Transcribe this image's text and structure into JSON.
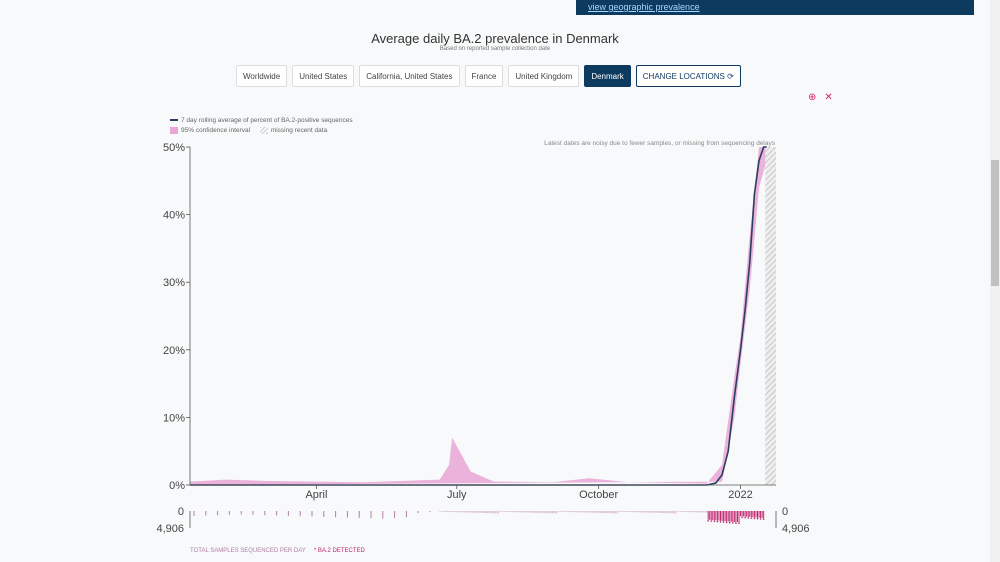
{
  "banner": {
    "link": "view geographic prevalence"
  },
  "header": {
    "title": "Average daily BA.2 prevalence in Denmark",
    "subtitle": "Based on reported sample collection date"
  },
  "locations": [
    {
      "label": "Worldwide",
      "active": false
    },
    {
      "label": "United States",
      "active": false
    },
    {
      "label": "California, United States",
      "active": false
    },
    {
      "label": "France",
      "active": false
    },
    {
      "label": "United Kingdom",
      "active": false
    },
    {
      "label": "Denmark",
      "active": true
    }
  ],
  "change_locations": "CHANGE LOCATIONS",
  "legend": {
    "line": "7 day rolling average of percent of BA.2-positive sequences",
    "ci": "95% confidence interval",
    "missing": "missing recent data"
  },
  "annotation": "Latest dates are noisy due to fewer samples, or missing from sequencing delays",
  "footer": {
    "samples": "TOTAL SAMPLES SEQUENCED PER DAY",
    "detected": "* BA.2 DETECTED"
  },
  "colors": {
    "line": "#2c3e5f",
    "ci": "#e9a6d6",
    "accent": "#0f3a5f",
    "detected": "#c0246e"
  },
  "chart_data": {
    "type": "line",
    "title": "Average daily BA.2 prevalence in Denmark",
    "xrange": [
      "2021-01-09",
      "2022-01-24"
    ],
    "ylim": [
      0,
      50
    ],
    "yticks": [
      "0%",
      "10%",
      "20%",
      "30%",
      "40%",
      "50%"
    ],
    "xticks": [
      {
        "date": "2021-04-01",
        "label": "April"
      },
      {
        "date": "2021-07-01",
        "label": "July"
      },
      {
        "date": "2021-10-01",
        "label": "October"
      },
      {
        "date": "2022-01-01",
        "label": "2022"
      }
    ],
    "missing_from": "2022-01-17",
    "series": {
      "dates": [
        "2021-01-09",
        "2021-12-10",
        "2021-12-16",
        "2021-12-20",
        "2021-12-24",
        "2021-12-28",
        "2022-01-01",
        "2022-01-04",
        "2022-01-07",
        "2022-01-10",
        "2022-01-13",
        "2022-01-16",
        "2022-01-18"
      ],
      "values": [
        0,
        0,
        0.3,
        1.5,
        5,
        13,
        20,
        26,
        33,
        43,
        48,
        50,
        50
      ]
    },
    "ci_upper": {
      "dates": [
        "2021-01-09",
        "2021-02-01",
        "2021-03-01",
        "2021-05-01",
        "2021-06-20",
        "2021-06-26",
        "2021-06-28",
        "2021-07-10",
        "2021-07-25",
        "2021-09-01",
        "2021-09-25",
        "2021-10-20",
        "2021-12-10",
        "2021-12-20",
        "2021-12-28",
        "2022-01-01",
        "2022-01-07",
        "2022-01-13",
        "2022-01-18"
      ],
      "values": [
        0.5,
        0.8,
        0.6,
        0.4,
        0.8,
        3,
        7,
        2,
        0.5,
        0.4,
        1,
        0.4,
        0.2,
        3,
        16,
        22,
        37,
        50,
        50
      ]
    },
    "ci_lower": {
      "dates": [
        "2021-01-09",
        "2021-12-20",
        "2021-12-28",
        "2022-01-01",
        "2022-01-07",
        "2022-01-13",
        "2022-01-18"
      ],
      "values": [
        0,
        0.5,
        10,
        18,
        29,
        44,
        48
      ]
    },
    "samples": {
      "ymax": 4906,
      "tick_labels": [
        "0",
        "4,906"
      ],
      "weekly": [
        1400,
        1300,
        1200,
        1100,
        1000,
        1100,
        1200,
        1300,
        1400,
        1500,
        1600,
        1700,
        1800,
        1900,
        2000,
        2100,
        2200,
        2000,
        1800,
        600,
        300
      ],
      "daily_start": "2021-06-20",
      "daily_end": "2022-01-16"
    }
  }
}
